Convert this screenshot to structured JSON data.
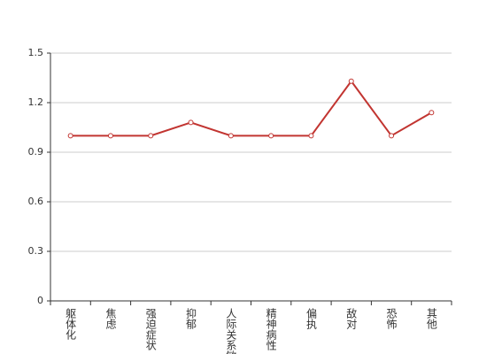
{
  "chart_data": {
    "type": "line",
    "categories": [
      "躯体化",
      "焦虑",
      "强迫症状",
      "抑郁",
      "人际关系敏感",
      "精神病性",
      "偏执",
      "敌对",
      "恐怖",
      "其他"
    ],
    "values": [
      1,
      1,
      1,
      1.08,
      1,
      1,
      1,
      1.33,
      1,
      1.14
    ],
    "color": "#c23531",
    "ylim": [
      0,
      1.5
    ],
    "yticks": [
      0,
      0.3,
      0.6,
      0.9,
      1.2,
      1.5
    ],
    "grid": true
  }
}
